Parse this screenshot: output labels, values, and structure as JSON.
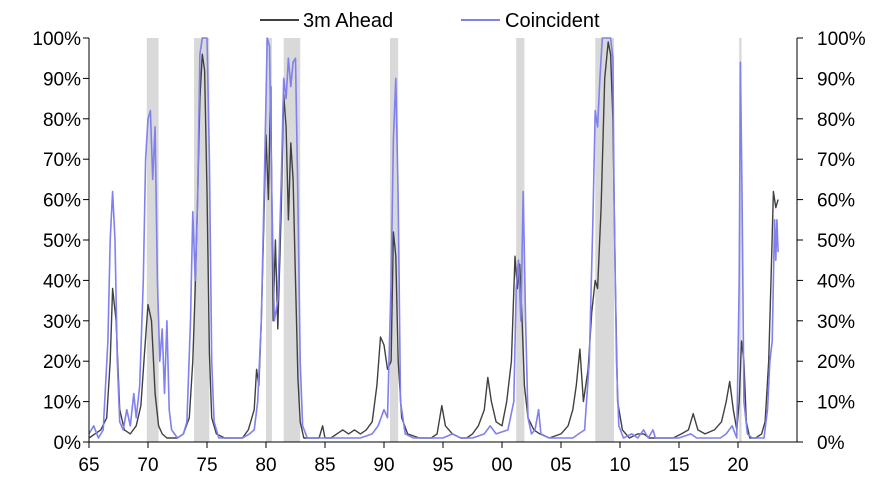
{
  "chart_data": {
    "type": "line",
    "title": "",
    "xlabel": "",
    "ylabel": "",
    "x_start": 1965,
    "x_end": 1975,
    "xlim": [
      1965.0,
      2025.0
    ],
    "ylim": [
      0,
      100
    ],
    "x_tick_values": [
      1965,
      1970,
      1975,
      1980,
      1985,
      1990,
      1995,
      2000,
      2005,
      2010,
      2015,
      2020
    ],
    "x_tick_labels": [
      "65",
      "70",
      "75",
      "80",
      "85",
      "90",
      "95",
      "00",
      "05",
      "10",
      "15",
      "20"
    ],
    "y_tick_values": [
      0,
      10,
      20,
      30,
      40,
      50,
      60,
      70,
      80,
      90,
      100
    ],
    "y_tick_labels": [
      "0%",
      "10%",
      "20%",
      "30%",
      "40%",
      "50%",
      "60%",
      "70%",
      "80%",
      "90%",
      "100%"
    ],
    "grid": false,
    "legend_position": "top-center",
    "recessions": [
      [
        1969.9,
        1970.9
      ],
      [
        1973.9,
        1975.2
      ],
      [
        1980.0,
        1980.5
      ],
      [
        1981.5,
        1982.9
      ],
      [
        1990.5,
        1991.2
      ],
      [
        2001.2,
        2001.9
      ],
      [
        2007.9,
        2009.5
      ],
      [
        2020.1,
        2020.3
      ]
    ],
    "series": [
      {
        "name": "3m Ahead",
        "color": "#404040",
        "points": [
          [
            1965.0,
            1
          ],
          [
            1965.5,
            2
          ],
          [
            1966.0,
            3
          ],
          [
            1966.5,
            6
          ],
          [
            1966.8,
            20
          ],
          [
            1967.0,
            38
          ],
          [
            1967.3,
            30
          ],
          [
            1967.6,
            8
          ],
          [
            1968.0,
            3
          ],
          [
            1968.5,
            2
          ],
          [
            1969.0,
            4
          ],
          [
            1969.4,
            9
          ],
          [
            1969.7,
            22
          ],
          [
            1970.0,
            34
          ],
          [
            1970.3,
            30
          ],
          [
            1970.6,
            12
          ],
          [
            1970.9,
            4
          ],
          [
            1971.2,
            2
          ],
          [
            1971.6,
            1
          ],
          [
            1972.0,
            1
          ],
          [
            1972.5,
            1
          ],
          [
            1973.0,
            2
          ],
          [
            1973.5,
            6
          ],
          [
            1973.8,
            20
          ],
          [
            1974.0,
            38
          ],
          [
            1974.2,
            60
          ],
          [
            1974.4,
            85
          ],
          [
            1974.6,
            96
          ],
          [
            1974.8,
            92
          ],
          [
            1975.0,
            62
          ],
          [
            1975.2,
            22
          ],
          [
            1975.4,
            6
          ],
          [
            1975.8,
            2
          ],
          [
            1976.5,
            1
          ],
          [
            1977.0,
            1
          ],
          [
            1977.5,
            1
          ],
          [
            1978.0,
            1
          ],
          [
            1978.5,
            3
          ],
          [
            1979.0,
            8
          ],
          [
            1979.2,
            18
          ],
          [
            1979.4,
            14
          ],
          [
            1979.6,
            30
          ],
          [
            1979.8,
            52
          ],
          [
            1980.0,
            76
          ],
          [
            1980.2,
            60
          ],
          [
            1980.4,
            88
          ],
          [
            1980.6,
            30
          ],
          [
            1980.8,
            50
          ],
          [
            1981.0,
            28
          ],
          [
            1981.3,
            58
          ],
          [
            1981.5,
            86
          ],
          [
            1981.7,
            78
          ],
          [
            1981.9,
            55
          ],
          [
            1982.1,
            74
          ],
          [
            1982.3,
            65
          ],
          [
            1982.5,
            40
          ],
          [
            1982.7,
            16
          ],
          [
            1982.9,
            5
          ],
          [
            1983.2,
            1
          ],
          [
            1984.0,
            1
          ],
          [
            1984.5,
            1
          ],
          [
            1984.8,
            4
          ],
          [
            1985.0,
            1
          ],
          [
            1985.5,
            1
          ],
          [
            1986.0,
            2
          ],
          [
            1986.5,
            3
          ],
          [
            1987.0,
            2
          ],
          [
            1987.5,
            3
          ],
          [
            1988.0,
            2
          ],
          [
            1988.5,
            3
          ],
          [
            1989.0,
            5
          ],
          [
            1989.4,
            14
          ],
          [
            1989.7,
            26
          ],
          [
            1990.0,
            24
          ],
          [
            1990.3,
            18
          ],
          [
            1990.6,
            20
          ],
          [
            1990.8,
            52
          ],
          [
            1991.0,
            46
          ],
          [
            1991.2,
            20
          ],
          [
            1991.5,
            6
          ],
          [
            1992.0,
            2
          ],
          [
            1993.0,
            1
          ],
          [
            1994.0,
            1
          ],
          [
            1994.5,
            2
          ],
          [
            1994.9,
            9
          ],
          [
            1995.2,
            4
          ],
          [
            1995.8,
            2
          ],
          [
            1996.5,
            1
          ],
          [
            1997.0,
            1
          ],
          [
            1997.5,
            2
          ],
          [
            1998.0,
            4
          ],
          [
            1998.5,
            8
          ],
          [
            1998.8,
            16
          ],
          [
            1999.1,
            10
          ],
          [
            1999.5,
            5
          ],
          [
            2000.0,
            4
          ],
          [
            2000.4,
            10
          ],
          [
            2000.8,
            20
          ],
          [
            2001.1,
            46
          ],
          [
            2001.3,
            38
          ],
          [
            2001.5,
            44
          ],
          [
            2001.7,
            30
          ],
          [
            2001.9,
            14
          ],
          [
            2002.2,
            6
          ],
          [
            2002.7,
            3
          ],
          [
            2003.2,
            2
          ],
          [
            2004.0,
            1
          ],
          [
            2005.0,
            2
          ],
          [
            2005.6,
            4
          ],
          [
            2006.0,
            8
          ],
          [
            2006.3,
            14
          ],
          [
            2006.6,
            23
          ],
          [
            2006.9,
            10
          ],
          [
            2007.3,
            18
          ],
          [
            2007.6,
            32
          ],
          [
            2007.9,
            40
          ],
          [
            2008.1,
            38
          ],
          [
            2008.4,
            58
          ],
          [
            2008.7,
            90
          ],
          [
            2009.0,
            99
          ],
          [
            2009.2,
            96
          ],
          [
            2009.4,
            80
          ],
          [
            2009.6,
            40
          ],
          [
            2009.8,
            10
          ],
          [
            2010.2,
            3
          ],
          [
            2010.8,
            1
          ],
          [
            2011.5,
            2
          ],
          [
            2012.0,
            2
          ],
          [
            2012.5,
            1
          ],
          [
            2013.5,
            1
          ],
          [
            2014.5,
            1
          ],
          [
            2015.2,
            2
          ],
          [
            2015.8,
            3
          ],
          [
            2016.2,
            7
          ],
          [
            2016.6,
            3
          ],
          [
            2017.2,
            2
          ],
          [
            2018.0,
            3
          ],
          [
            2018.6,
            5
          ],
          [
            2019.0,
            10
          ],
          [
            2019.3,
            15
          ],
          [
            2019.6,
            8
          ],
          [
            2019.9,
            3
          ],
          [
            2020.1,
            10
          ],
          [
            2020.3,
            25
          ],
          [
            2020.5,
            20
          ],
          [
            2020.7,
            5
          ],
          [
            2021.0,
            1
          ],
          [
            2021.5,
            1
          ],
          [
            2022.0,
            2
          ],
          [
            2022.3,
            5
          ],
          [
            2022.6,
            20
          ],
          [
            2022.8,
            40
          ],
          [
            2023.0,
            62
          ],
          [
            2023.2,
            58
          ],
          [
            2023.4,
            60
          ]
        ]
      },
      {
        "name": "Coincident",
        "color": "#8080ee",
        "points": [
          [
            1965.0,
            2
          ],
          [
            1965.4,
            4
          ],
          [
            1965.8,
            1
          ],
          [
            1966.2,
            3
          ],
          [
            1966.6,
            25
          ],
          [
            1966.8,
            50
          ],
          [
            1967.0,
            62
          ],
          [
            1967.2,
            50
          ],
          [
            1967.4,
            20
          ],
          [
            1967.6,
            5
          ],
          [
            1967.9,
            3
          ],
          [
            1968.2,
            8
          ],
          [
            1968.5,
            4
          ],
          [
            1968.8,
            12
          ],
          [
            1969.0,
            6
          ],
          [
            1969.3,
            14
          ],
          [
            1969.6,
            40
          ],
          [
            1969.8,
            70
          ],
          [
            1970.0,
            80
          ],
          [
            1970.2,
            82
          ],
          [
            1970.4,
            65
          ],
          [
            1970.6,
            78
          ],
          [
            1970.8,
            40
          ],
          [
            1971.0,
            20
          ],
          [
            1971.2,
            28
          ],
          [
            1971.4,
            12
          ],
          [
            1971.6,
            30
          ],
          [
            1971.8,
            8
          ],
          [
            1972.0,
            3
          ],
          [
            1972.5,
            1
          ],
          [
            1973.0,
            2
          ],
          [
            1973.3,
            5
          ],
          [
            1973.6,
            30
          ],
          [
            1973.8,
            57
          ],
          [
            1974.0,
            40
          ],
          [
            1974.2,
            60
          ],
          [
            1974.4,
            96
          ],
          [
            1974.6,
            100
          ],
          [
            1974.8,
            100
          ],
          [
            1975.0,
            100
          ],
          [
            1975.2,
            70
          ],
          [
            1975.4,
            20
          ],
          [
            1975.6,
            5
          ],
          [
            1976.0,
            1
          ],
          [
            1977.0,
            1
          ],
          [
            1978.0,
            1
          ],
          [
            1978.6,
            2
          ],
          [
            1979.0,
            3
          ],
          [
            1979.3,
            10
          ],
          [
            1979.6,
            30
          ],
          [
            1979.9,
            70
          ],
          [
            1980.1,
            100
          ],
          [
            1980.3,
            98
          ],
          [
            1980.5,
            60
          ],
          [
            1980.7,
            30
          ],
          [
            1981.0,
            35
          ],
          [
            1981.3,
            65
          ],
          [
            1981.5,
            90
          ],
          [
            1981.7,
            85
          ],
          [
            1981.9,
            95
          ],
          [
            1982.1,
            88
          ],
          [
            1982.3,
            94
          ],
          [
            1982.5,
            95
          ],
          [
            1982.7,
            60
          ],
          [
            1982.9,
            20
          ],
          [
            1983.1,
            4
          ],
          [
            1983.5,
            1
          ],
          [
            1984.0,
            1
          ],
          [
            1985.0,
            1
          ],
          [
            1986.0,
            1
          ],
          [
            1987.0,
            1
          ],
          [
            1988.0,
            1
          ],
          [
            1989.0,
            2
          ],
          [
            1989.5,
            4
          ],
          [
            1990.0,
            8
          ],
          [
            1990.3,
            6
          ],
          [
            1990.6,
            40
          ],
          [
            1990.8,
            75
          ],
          [
            1991.0,
            90
          ],
          [
            1991.2,
            60
          ],
          [
            1991.4,
            10
          ],
          [
            1991.8,
            2
          ],
          [
            1992.5,
            1
          ],
          [
            1994.0,
            1
          ],
          [
            1995.0,
            1
          ],
          [
            1995.8,
            2
          ],
          [
            1996.5,
            1
          ],
          [
            1997.5,
            1
          ],
          [
            1998.5,
            2
          ],
          [
            1999.0,
            4
          ],
          [
            1999.5,
            2
          ],
          [
            2000.5,
            3
          ],
          [
            2001.0,
            10
          ],
          [
            2001.2,
            38
          ],
          [
            2001.4,
            45
          ],
          [
            2001.6,
            30
          ],
          [
            2001.8,
            62
          ],
          [
            2002.0,
            30
          ],
          [
            2002.2,
            6
          ],
          [
            2002.5,
            2
          ],
          [
            2002.8,
            3
          ],
          [
            2003.1,
            8
          ],
          [
            2003.3,
            2
          ],
          [
            2004.0,
            1
          ],
          [
            2005.0,
            1
          ],
          [
            2006.0,
            1
          ],
          [
            2006.5,
            2
          ],
          [
            2007.0,
            3
          ],
          [
            2007.4,
            20
          ],
          [
            2007.7,
            55
          ],
          [
            2007.9,
            82
          ],
          [
            2008.1,
            78
          ],
          [
            2008.3,
            90
          ],
          [
            2008.5,
            100
          ],
          [
            2008.7,
            100
          ],
          [
            2009.0,
            100
          ],
          [
            2009.2,
            100
          ],
          [
            2009.4,
            95
          ],
          [
            2009.5,
            60
          ],
          [
            2009.7,
            20
          ],
          [
            2009.9,
            4
          ],
          [
            2010.3,
            1
          ],
          [
            2011.0,
            2
          ],
          [
            2011.5,
            1
          ],
          [
            2012.0,
            3
          ],
          [
            2012.4,
            1
          ],
          [
            2012.8,
            3
          ],
          [
            2013.0,
            1
          ],
          [
            2014.0,
            1
          ],
          [
            2015.0,
            1
          ],
          [
            2016.0,
            2
          ],
          [
            2016.5,
            1
          ],
          [
            2017.5,
            1
          ],
          [
            2018.5,
            1
          ],
          [
            2019.0,
            2
          ],
          [
            2019.5,
            4
          ],
          [
            2019.9,
            1
          ],
          [
            2020.1,
            40
          ],
          [
            2020.2,
            94
          ],
          [
            2020.35,
            60
          ],
          [
            2020.5,
            10
          ],
          [
            2020.8,
            2
          ],
          [
            2021.2,
            1
          ],
          [
            2021.8,
            1
          ],
          [
            2022.2,
            1
          ],
          [
            2022.5,
            8
          ],
          [
            2022.7,
            20
          ],
          [
            2022.9,
            25
          ],
          [
            2023.0,
            40
          ],
          [
            2023.1,
            55
          ],
          [
            2023.2,
            45
          ],
          [
            2023.3,
            55
          ],
          [
            2023.4,
            47
          ]
        ]
      }
    ]
  }
}
